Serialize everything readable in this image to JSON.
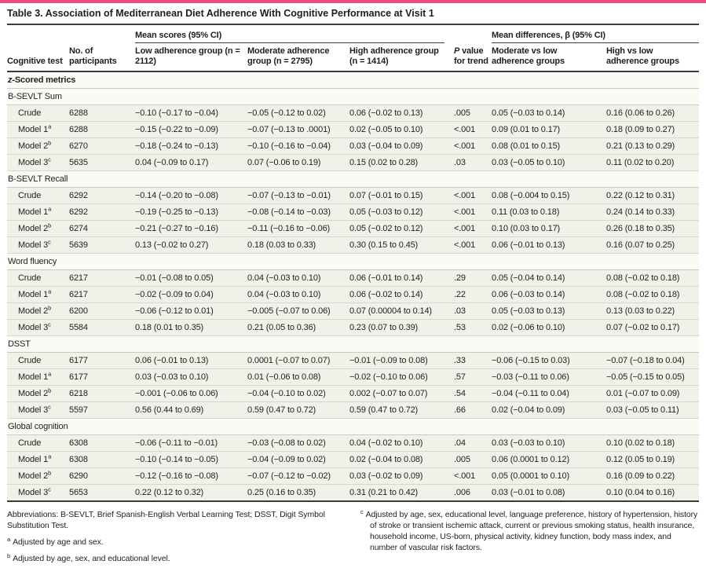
{
  "accent_color": "#ED4A7D",
  "title": "Table 3. Association of Mediterranean Diet Adherence With Cognitive Performance at Visit 1",
  "table": {
    "groups": {
      "mean_scores": "Mean scores (95% CI)",
      "mean_differences": "Mean differences, β (95% CI)"
    },
    "columns": {
      "cognitive_test": "Cognitive test",
      "participants": "No. of participants",
      "low": "Low adherence group (n = 2112)",
      "moderate": "Moderate adherence group (n = 2795)",
      "high": "High adherence group (n = 1414)",
      "p_italic": "P",
      "p_rest": " value for trend",
      "mod_vs_low": "Moderate vs low adherence groups",
      "high_vs_low": "High vs low adherence groups"
    },
    "z_group": {
      "italic": "z",
      "rest": "-Scored metrics"
    },
    "sections": [
      {
        "header": "B-SEVLT Sum",
        "rows": [
          {
            "label": "Crude",
            "sup": "",
            "n": "6288",
            "low": "−0.10 (−0.17 to −0.04)",
            "moderate": "−0.05 (−0.12 to 0.02)",
            "high": "0.06 (−0.02 to 0.13)",
            "p": ".005",
            "mod_vs_low": "0.05 (−0.03 to 0.14)",
            "high_vs_low": "0.16 (0.06 to 0.26)"
          },
          {
            "label": "Model 1",
            "sup": "a",
            "n": "6288",
            "low": "−0.15 (−0.22 to −0.09)",
            "moderate": "−0.07 (−0.13 to .0001)",
            "high": "0.02 (−0.05 to 0.10)",
            "p": "<.001",
            "mod_vs_low": "0.09 (0.01 to 0.17)",
            "high_vs_low": "0.18 (0.09 to 0.27)"
          },
          {
            "label": "Model 2",
            "sup": "b",
            "n": "6270",
            "low": "−0.18 (−0.24 to −0.13)",
            "moderate": "−0.10 (−0.16 to −0.04)",
            "high": "0.03 (−0.04 to 0.09)",
            "p": "<.001",
            "mod_vs_low": "0.08 (0.01 to 0.15)",
            "high_vs_low": "0.21 (0.13 to 0.29)"
          },
          {
            "label": "Model 3",
            "sup": "c",
            "n": "5635",
            "low": "0.04 (−0.09 to 0.17)",
            "moderate": "0.07 (−0.06 to 0.19)",
            "high": "0.15 (0.02 to 0.28)",
            "p": ".03",
            "mod_vs_low": "0.03 (−0.05 to 0.10)",
            "high_vs_low": "0.11 (0.02 to 0.20)"
          }
        ]
      },
      {
        "header": "B-SEVLT Recall",
        "rows": [
          {
            "label": "Crude",
            "sup": "",
            "n": "6292",
            "low": "−0.14 (−0.20 to −0.08)",
            "moderate": "−0.07 (−0.13 to −0.01)",
            "high": "0.07 (−0.01 to 0.15)",
            "p": "<.001",
            "mod_vs_low": "0.08 (−0.004 to 0.15)",
            "high_vs_low": "0.22 (0.12 to 0.31)"
          },
          {
            "label": "Model 1",
            "sup": "a",
            "n": "6292",
            "low": "−0.19 (−0.25 to −0.13)",
            "moderate": "−0.08 (−0.14 to −0.03)",
            "high": "0.05 (−0.03 to 0.12)",
            "p": "<.001",
            "mod_vs_low": "0.11 (0.03 to 0.18)",
            "high_vs_low": "0.24 (0.14 to 0.33)"
          },
          {
            "label": "Model 2",
            "sup": "b",
            "n": "6274",
            "low": "−0.21 (−0.27 to −0.16)",
            "moderate": "−0.11 (−0.16 to −0.06)",
            "high": "0.05 (−0.02 to 0.12)",
            "p": "<.001",
            "mod_vs_low": "0.10 (0.03 to 0.17)",
            "high_vs_low": "0.26 (0.18 to 0.35)"
          },
          {
            "label": "Model 3",
            "sup": "c",
            "n": "5639",
            "low": "0.13 (−0.02 to 0.27)",
            "moderate": "0.18 (0.03 to 0.33)",
            "high": "0.30 (0.15 to 0.45)",
            "p": "<.001",
            "mod_vs_low": "0.06 (−0.01 to 0.13)",
            "high_vs_low": "0.16 (0.07 to 0.25)"
          }
        ]
      },
      {
        "header": "Word fluency",
        "rows": [
          {
            "label": "Crude",
            "sup": "",
            "n": "6217",
            "low": "−0.01 (−0.08 to 0.05)",
            "moderate": "0.04 (−0.03 to 0.10)",
            "high": "0.06 (−0.01 to 0.14)",
            "p": ".29",
            "mod_vs_low": "0.05 (−0.04 to 0.14)",
            "high_vs_low": "0.08 (−0.02 to 0.18)"
          },
          {
            "label": "Model 1",
            "sup": "a",
            "n": "6217",
            "low": "−0.02 (−0.09 to 0.04)",
            "moderate": "0.04 (−0.03 to 0.10)",
            "high": "0.06 (−0.02 to 0.14)",
            "p": ".22",
            "mod_vs_low": "0.06 (−0.03 to 0.14)",
            "high_vs_low": "0.08 (−0.02 to 0.18)"
          },
          {
            "label": "Model 2",
            "sup": "b",
            "n": "6200",
            "low": "−0.06 (−0.12 to 0.01)",
            "moderate": "−0.005 (−0.07 to 0.06)",
            "high": "0.07 (0.00004 to 0.14)",
            "p": ".03",
            "mod_vs_low": "0.05 (−0.03 to 0.13)",
            "high_vs_low": "0.13 (0.03 to 0.22)"
          },
          {
            "label": "Model 3",
            "sup": "c",
            "n": "5584",
            "low": "0.18 (0.01 to 0.35)",
            "moderate": "0.21 (0.05 to 0.36)",
            "high": "0.23 (0.07 to 0.39)",
            "p": ".53",
            "mod_vs_low": "0.02 (−0.06 to 0.10)",
            "high_vs_low": "0.07 (−0.02 to 0.17)"
          }
        ]
      },
      {
        "header": "DSST",
        "rows": [
          {
            "label": "Crude",
            "sup": "",
            "n": "6177",
            "low": "0.06 (−0.01 to 0.13)",
            "moderate": "0.0001 (−0.07 to 0.07)",
            "high": "−0.01 (−0.09 to 0.08)",
            "p": ".33",
            "mod_vs_low": "−0.06 (−0.15 to 0.03)",
            "high_vs_low": "−0.07 (−0.18 to 0.04)"
          },
          {
            "label": "Model 1",
            "sup": "a",
            "n": "6177",
            "low": "0.03 (−0.03 to 0.10)",
            "moderate": "0.01 (−0.06 to 0.08)",
            "high": "−0.02 (−0.10 to 0.06)",
            "p": ".57",
            "mod_vs_low": "−0.03 (−0.11 to 0.06)",
            "high_vs_low": "−0.05 (−0.15 to 0.05)"
          },
          {
            "label": "Model 2",
            "sup": "b",
            "n": "6218",
            "low": "−0.001 (−0.06 to 0.06)",
            "moderate": "−0.04 (−0.10 to 0.02)",
            "high": "0.002 (−0.07 to 0.07)",
            "p": ".54",
            "mod_vs_low": "−0.04 (−0.11 to 0.04)",
            "high_vs_low": "0.01 (−0.07 to 0.09)"
          },
          {
            "label": "Model 3",
            "sup": "c",
            "n": "5597",
            "low": "0.56 (0.44 to 0.69)",
            "moderate": "0.59 (0.47 to 0.72)",
            "high": "0.59 (0.47 to 0.72)",
            "p": ".66",
            "mod_vs_low": "0.02 (−0.04 to 0.09)",
            "high_vs_low": "0.03 (−0.05 to 0.11)"
          }
        ]
      },
      {
        "header": "Global cognition",
        "rows": [
          {
            "label": "Crude",
            "sup": "",
            "n": "6308",
            "low": "−0.06 (−0.11 to −0.01)",
            "moderate": "−0.03 (−0.08 to 0.02)",
            "high": "0.04 (−0.02 to 0.10)",
            "p": ".04",
            "mod_vs_low": "0.03 (−0.03 to 0.10)",
            "high_vs_low": "0.10 (0.02 to 0.18)"
          },
          {
            "label": "Model 1",
            "sup": "a",
            "n": "6308",
            "low": "−0.10 (−0.14 to −0.05)",
            "moderate": "−0.04 (−0.09 to 0.02)",
            "high": "0.02 (−0.04 to 0.08)",
            "p": ".005",
            "mod_vs_low": "0.06 (0.0001 to 0.12)",
            "high_vs_low": "0.12 (0.05 to 0.19)"
          },
          {
            "label": "Model 2",
            "sup": "b",
            "n": "6290",
            "low": "−0.12 (−0.16 to −0.08)",
            "moderate": "−0.07 (−0.12 to −0.02)",
            "high": "0.03 (−0.02 to 0.09)",
            "p": "<.001",
            "mod_vs_low": "0.05 (0.0001 to 0.10)",
            "high_vs_low": "0.16 (0.09 to 0.22)"
          },
          {
            "label": "Model 3",
            "sup": "c",
            "n": "5653",
            "low": "0.22 (0.12 to 0.32)",
            "moderate": "0.25 (0.16 to 0.35)",
            "high": "0.31 (0.21 to 0.42)",
            "p": ".006",
            "mod_vs_low": "0.03 (−0.01 to 0.08)",
            "high_vs_low": "0.10 (0.04 to 0.16)"
          }
        ]
      }
    ]
  },
  "footnotes": {
    "abbreviations": "Abbreviations: B-SEVLT, Brief Spanish-English Verbal Learning Test; DSST, Digit Symbol Substitution Test.",
    "items": [
      {
        "marker": "a",
        "text": "Adjusted by age and sex."
      },
      {
        "marker": "b",
        "text": "Adjusted by age, sex, and educational level."
      },
      {
        "marker": "c",
        "text": "Adjusted by age, sex, educational level, language preference, history of hypertension, history of stroke or transient ischemic attack, current or previous smoking status, health insurance, household income, US-born, physical activity, kidney function, body mass index, and number of vascular risk factors."
      }
    ]
  }
}
